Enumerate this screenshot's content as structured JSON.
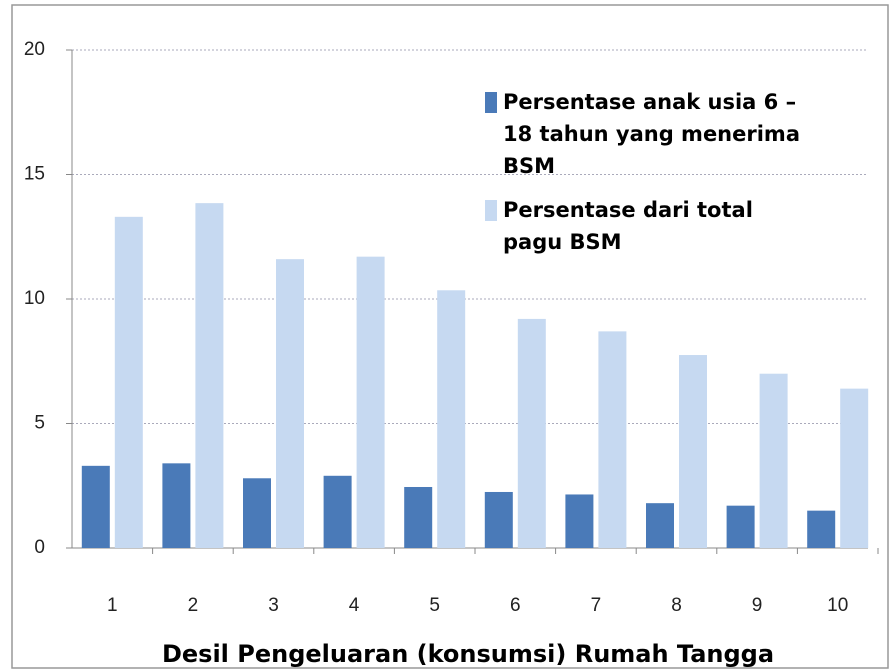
{
  "chart_data": {
    "type": "bar",
    "x_label": "Desil Pengeluaran (konsumsi) Rumah Tangga",
    "categories": [
      "1",
      "2",
      "3",
      "4",
      "5",
      "6",
      "7",
      "8",
      "9",
      "10"
    ],
    "series": [
      {
        "name": "Persentase anak usia 6 – 18 tahun yang menerima BSM",
        "color": "#4a7ab8",
        "values": [
          3.3,
          3.4,
          2.8,
          2.9,
          2.45,
          2.25,
          2.15,
          1.8,
          1.7,
          1.5
        ]
      },
      {
        "name": "Persentase dari total pagu BSM",
        "color": "#c6d9f1",
        "values": [
          13.3,
          13.85,
          11.6,
          11.7,
          10.35,
          9.2,
          8.7,
          7.75,
          7.0,
          6.4
        ]
      }
    ],
    "ylim": [
      0,
      20
    ],
    "yticks": [
      0,
      5,
      10,
      15,
      20
    ],
    "grid": true
  }
}
